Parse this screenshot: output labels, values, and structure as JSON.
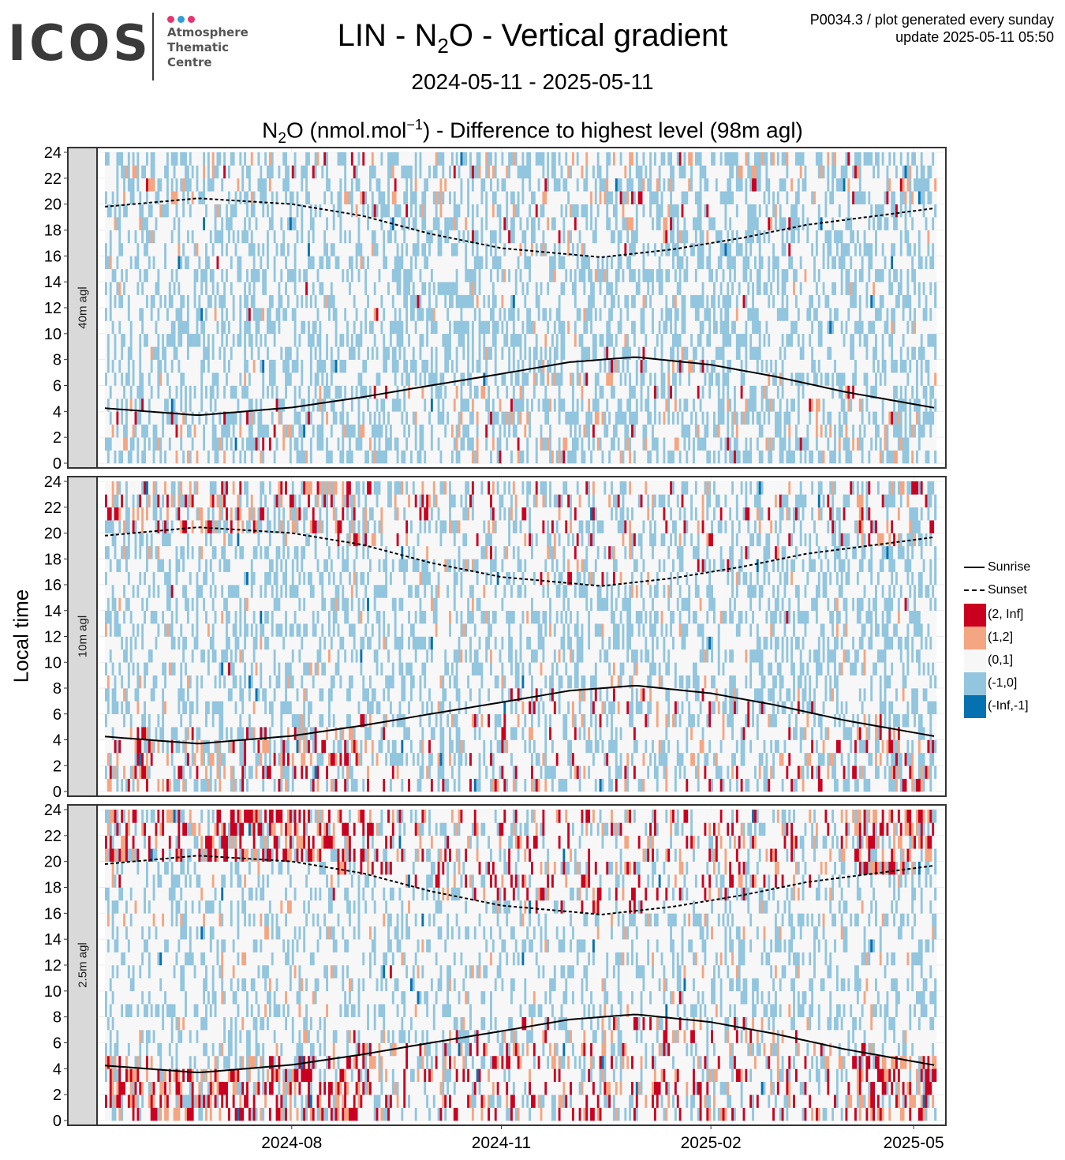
{
  "logo": {
    "word": "ICOS",
    "line1": "Atmosphere",
    "line2": "Thematic",
    "line3": "Centre",
    "dot_colors": [
      "#e8336d",
      "#2e9fd8",
      "#e8336d"
    ]
  },
  "header": {
    "title_pre": "LIN - N",
    "title_sub": "2",
    "title_post": "O - Vertical gradient",
    "period": "2024-05-11 - 2025-05-11",
    "sub_pre": "N",
    "sub_sub": "2",
    "sub_mid": "O (nmol.mol",
    "sub_sup": "−1",
    "sub_post": ") - Difference to highest level (98m agl)",
    "meta_line1": "P0034.3 / plot generated every sunday",
    "meta_line2": "update  2025-05-11 05:50"
  },
  "chart_data": {
    "type": "heatmap",
    "x_range": [
      "2024-05-11",
      "2025-05-11"
    ],
    "x_ticks": [
      "2024-08",
      "2024-11",
      "2025-02",
      "2025-05"
    ],
    "x_tick_dates": [
      "2024-08-01",
      "2024-11-01",
      "2025-02-01",
      "2025-05-01"
    ],
    "ylabel": "Local time",
    "y_range": [
      0,
      24
    ],
    "y_ticks": [
      0,
      2,
      4,
      6,
      8,
      10,
      12,
      14,
      16,
      18,
      20,
      22,
      24
    ],
    "panels": [
      {
        "label": "40m agl"
      },
      {
        "label": "10m agl"
      },
      {
        "label": "2.5m agl"
      }
    ],
    "legend": [
      {
        "label": "Sunrise",
        "kind": "line",
        "style": "solid"
      },
      {
        "label": "Sunset",
        "kind": "line",
        "style": "dashed"
      },
      {
        "label": "(2, Inf]",
        "kind": "fill",
        "color": "#ca0020"
      },
      {
        "label": "(1,2]",
        "kind": "fill",
        "color": "#f4a582"
      },
      {
        "label": "(0,1]",
        "kind": "fill",
        "color": "#f7f7f7"
      },
      {
        "label": "(-1,0]",
        "kind": "fill",
        "color": "#92c5de"
      },
      {
        "label": "(-Inf,-1]",
        "kind": "fill",
        "color": "#0571b0"
      }
    ],
    "sunrise_hours": [
      {
        "date": "2024-05-11",
        "hour": 4.25
      },
      {
        "date": "2024-06-21",
        "hour": 3.7
      },
      {
        "date": "2024-08-01",
        "hour": 4.3
      },
      {
        "date": "2024-09-01",
        "hour": 5.1
      },
      {
        "date": "2024-10-01",
        "hour": 6.0
      },
      {
        "date": "2024-11-01",
        "hour": 6.9
      },
      {
        "date": "2024-12-01",
        "hour": 7.8
      },
      {
        "date": "2024-12-30",
        "hour": 8.2
      },
      {
        "date": "2025-02-01",
        "hour": 7.6
      },
      {
        "date": "2025-03-01",
        "hour": 6.7
      },
      {
        "date": "2025-04-01",
        "hour": 5.5
      },
      {
        "date": "2025-05-11",
        "hour": 4.25
      }
    ],
    "sunset_hours": [
      {
        "date": "2024-05-11",
        "hour": 19.8
      },
      {
        "date": "2024-06-21",
        "hour": 20.45
      },
      {
        "date": "2024-08-01",
        "hour": 20.0
      },
      {
        "date": "2024-09-01",
        "hour": 19.1
      },
      {
        "date": "2024-10-01",
        "hour": 17.7
      },
      {
        "date": "2024-11-01",
        "hour": 16.6
      },
      {
        "date": "2024-12-15",
        "hour": 15.9
      },
      {
        "date": "2025-01-15",
        "hour": 16.5
      },
      {
        "date": "2025-02-15",
        "hour": 17.4
      },
      {
        "date": "2025-03-15",
        "hour": 18.4
      },
      {
        "date": "2025-04-15",
        "hour": 19.1
      },
      {
        "date": "2025-05-11",
        "hour": 19.7
      }
    ],
    "notes": "Each panel is a day × hour grid of N2O differences to 98m level, coloured by the legend classes. Individual cell values are too numerous to transcribe; cell colours are reproduced approximately."
  }
}
